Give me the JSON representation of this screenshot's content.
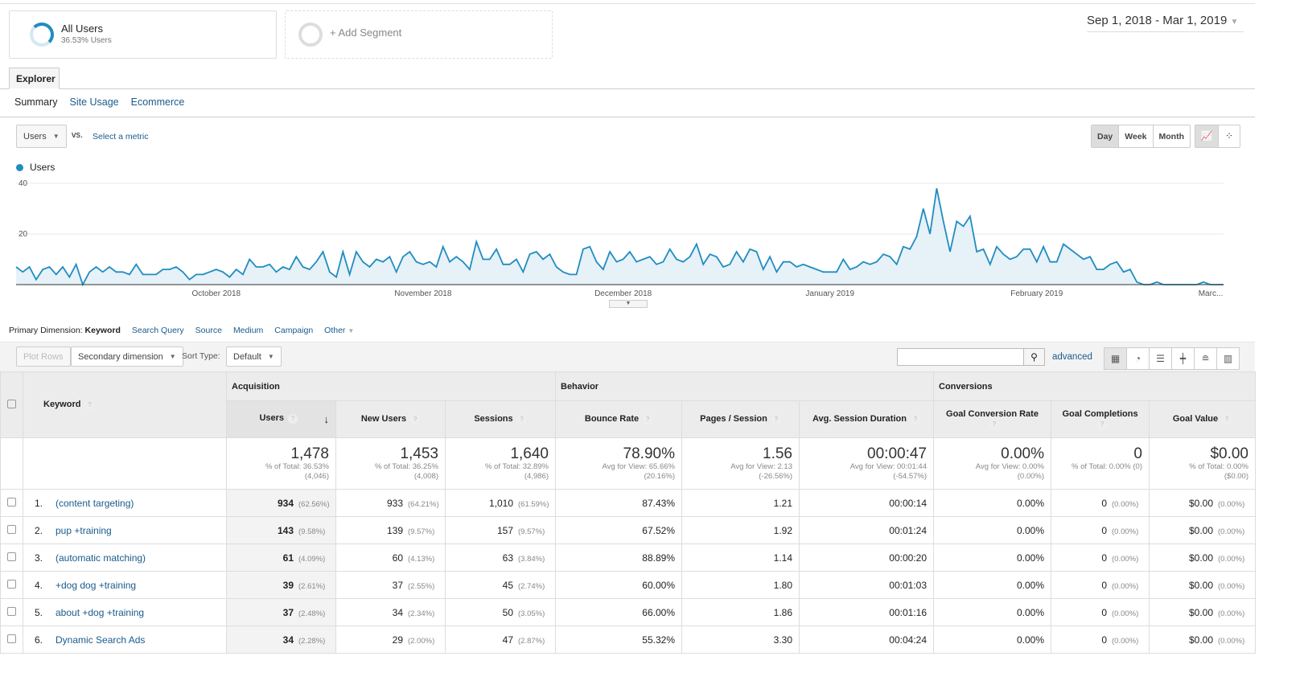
{
  "segments": [
    {
      "label": "All Users",
      "sub": "36.53% Users"
    },
    {
      "label": "+ Add Segment"
    }
  ],
  "date_range": "Sep 1, 2018 - Mar 1, 2019",
  "tabs": {
    "explorer": "Explorer",
    "subtabs": [
      "Summary",
      "Site Usage",
      "Ecommerce"
    ]
  },
  "metric": {
    "selected": "Users",
    "vs": "vs.",
    "select": "Select a metric"
  },
  "granularity": [
    "Day",
    "Week",
    "Month"
  ],
  "colors": {
    "line": "#1f8dc0",
    "fill": "#e6f1f8",
    "link": "#1a5b8c"
  },
  "chart_data": {
    "type": "area",
    "series": [
      {
        "name": "Users",
        "values": [
          7,
          5,
          7,
          2,
          6,
          7,
          4,
          7,
          3,
          8,
          0,
          5,
          7,
          5,
          7,
          5,
          5,
          4,
          8,
          4,
          4,
          4,
          6,
          6,
          7,
          5,
          2,
          4,
          4,
          5,
          6,
          5,
          3,
          6,
          4,
          10,
          7,
          7,
          8,
          5,
          7,
          6,
          11,
          7,
          6,
          9,
          13,
          5,
          3,
          13,
          4,
          13,
          9,
          7,
          10,
          9,
          11,
          5,
          11,
          13,
          9,
          8,
          9,
          7,
          15,
          9,
          11,
          9,
          6,
          17,
          10,
          10,
          14,
          8,
          8,
          10,
          5,
          12,
          13,
          10,
          12,
          7,
          5,
          4,
          4,
          14,
          15,
          9,
          6,
          13,
          9,
          10,
          13,
          9,
          10,
          11,
          8,
          9,
          14,
          10,
          9,
          11,
          16,
          8,
          12,
          11,
          7,
          8,
          13,
          9,
          14,
          13,
          6,
          11,
          5,
          9,
          9,
          7,
          8,
          7,
          6,
          5,
          5,
          5,
          10,
          6,
          7,
          9,
          8,
          9,
          12,
          11,
          8,
          15,
          14,
          19,
          30,
          20,
          38,
          25,
          13,
          25,
          23,
          27,
          13,
          14,
          8,
          15,
          12,
          10,
          11,
          14,
          14,
          9,
          15,
          9,
          9,
          16,
          14,
          12,
          10,
          11,
          6,
          6,
          8,
          9,
          5,
          6,
          1,
          0,
          0,
          1,
          0,
          0,
          0,
          0,
          0,
          0,
          1,
          0,
          0,
          0
        ]
      }
    ],
    "x_start": "Sep 1, 2018",
    "x_ticks": [
      {
        "day": 30,
        "label": "October 2018"
      },
      {
        "day": 61,
        "label": "November 2018"
      },
      {
        "day": 91,
        "label": "December 2018"
      },
      {
        "day": 122,
        "label": "January 2019"
      },
      {
        "day": 153,
        "label": "February 2019"
      },
      {
        "day": 181,
        "label": "Marc..."
      }
    ],
    "y_ticks": [
      "20",
      "40"
    ],
    "ylim": [
      0,
      40
    ],
    "grid": true,
    "legend": "top-left"
  },
  "dimension": {
    "label": "Primary Dimension:",
    "active": "Keyword",
    "options": [
      "Search Query",
      "Source",
      "Medium",
      "Campaign",
      "Other"
    ]
  },
  "toolbar": {
    "plot_rows": "Plot Rows",
    "secondary": "Secondary dimension",
    "sort_label": "Sort Type:",
    "sort_value": "Default",
    "search_value": "",
    "advanced": "advanced"
  },
  "table": {
    "groups": [
      "Acquisition",
      "Behavior",
      "Conversions"
    ],
    "dim_header": "Keyword",
    "columns": [
      "Users",
      "New Users",
      "Sessions",
      "Bounce Rate",
      "Pages / Session",
      "Avg. Session Duration",
      "Goal Conversion Rate",
      "Goal Completions",
      "Goal Value"
    ],
    "totals": [
      {
        "v": "1,478",
        "s1": "% of Total: 36.53%",
        "s2": "(4,046)"
      },
      {
        "v": "1,453",
        "s1": "% of Total: 36.25%",
        "s2": "(4,008)"
      },
      {
        "v": "1,640",
        "s1": "% of Total: 32.89%",
        "s2": "(4,986)"
      },
      {
        "v": "78.90%",
        "s1": "Avg for View: 65.66%",
        "s2": "(20.16%)"
      },
      {
        "v": "1.56",
        "s1": "Avg for View: 2.13",
        "s2": "(-26.56%)"
      },
      {
        "v": "00:00:47",
        "s1": "Avg for View: 00:01:44",
        "s2": "(-54.57%)"
      },
      {
        "v": "0.00%",
        "s1": "Avg for View: 0.00%",
        "s2": "(0.00%)"
      },
      {
        "v": "0",
        "s1": "% of Total: 0.00% (0)",
        "s2": ""
      },
      {
        "v": "$0.00",
        "s1": "% of Total: 0.00%",
        "s2": "($0.00)"
      }
    ],
    "rows": [
      {
        "n": "1.",
        "k": "(content targeting)",
        "u": "934",
        "up": "(62.56%)",
        "nu": "933",
        "nup": "(64.21%)",
        "s": "1,010",
        "sp": "(61.59%)",
        "br": "87.43%",
        "ps": "1.21",
        "d": "00:00:14",
        "gcr": "0.00%",
        "gc": "0",
        "gcp": "(0.00%)",
        "gv": "$0.00",
        "gvp": "(0.00%)"
      },
      {
        "n": "2.",
        "k": "pup +training",
        "u": "143",
        "up": "(9.58%)",
        "nu": "139",
        "nup": "(9.57%)",
        "s": "157",
        "sp": "(9.57%)",
        "br": "67.52%",
        "ps": "1.92",
        "d": "00:01:24",
        "gcr": "0.00%",
        "gc": "0",
        "gcp": "(0.00%)",
        "gv": "$0.00",
        "gvp": "(0.00%)"
      },
      {
        "n": "3.",
        "k": "(automatic matching)",
        "u": "61",
        "up": "(4.09%)",
        "nu": "60",
        "nup": "(4.13%)",
        "s": "63",
        "sp": "(3.84%)",
        "br": "88.89%",
        "ps": "1.14",
        "d": "00:00:20",
        "gcr": "0.00%",
        "gc": "0",
        "gcp": "(0.00%)",
        "gv": "$0.00",
        "gvp": "(0.00%)"
      },
      {
        "n": "4.",
        "k": "+dog dog +training",
        "u": "39",
        "up": "(2.61%)",
        "nu": "37",
        "nup": "(2.55%)",
        "s": "45",
        "sp": "(2.74%)",
        "br": "60.00%",
        "ps": "1.80",
        "d": "00:01:03",
        "gcr": "0.00%",
        "gc": "0",
        "gcp": "(0.00%)",
        "gv": "$0.00",
        "gvp": "(0.00%)"
      },
      {
        "n": "5.",
        "k": "about +dog +training",
        "u": "37",
        "up": "(2.48%)",
        "nu": "34",
        "nup": "(2.34%)",
        "s": "50",
        "sp": "(3.05%)",
        "br": "66.00%",
        "ps": "1.86",
        "d": "00:01:16",
        "gcr": "0.00%",
        "gc": "0",
        "gcp": "(0.00%)",
        "gv": "$0.00",
        "gvp": "(0.00%)"
      },
      {
        "n": "6.",
        "k": "Dynamic Search Ads",
        "u": "34",
        "up": "(2.28%)",
        "nu": "29",
        "nup": "(2.00%)",
        "s": "47",
        "sp": "(2.87%)",
        "br": "55.32%",
        "ps": "3.30",
        "d": "00:04:24",
        "gcr": "0.00%",
        "gc": "0",
        "gcp": "(0.00%)",
        "gv": "$0.00",
        "gvp": "(0.00%)"
      }
    ]
  }
}
